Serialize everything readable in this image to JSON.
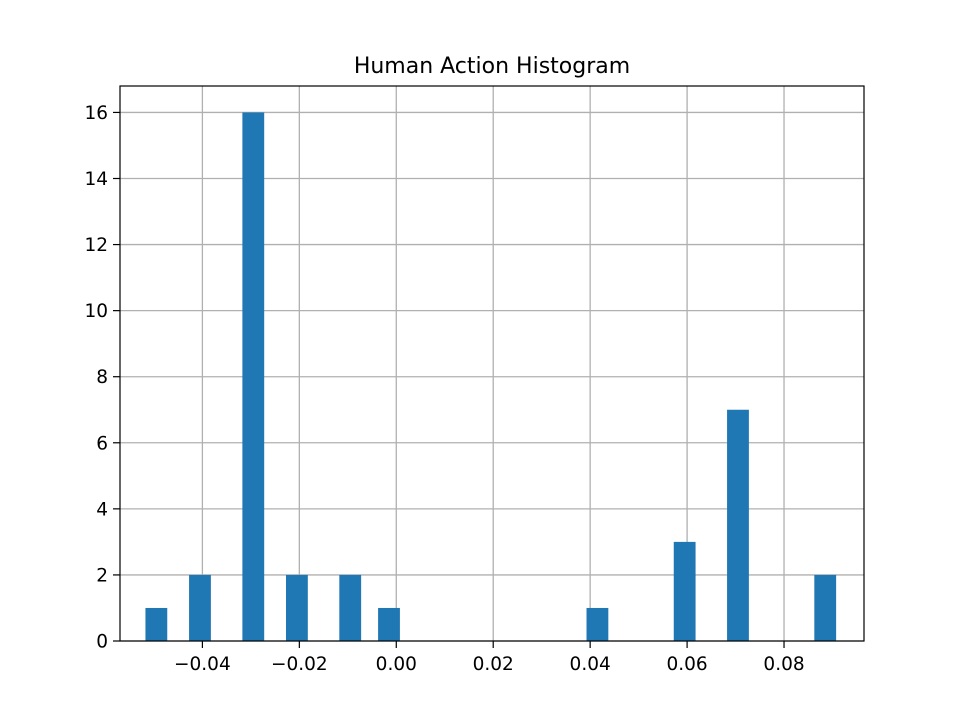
{
  "chart_data": {
    "type": "bar",
    "title": "Human Action Histogram",
    "xlabel": "",
    "ylabel": "",
    "xlim": [
      -0.057,
      0.0965
    ],
    "ylim": [
      0,
      16.8
    ],
    "grid": true,
    "bar_color": "#1f77b4",
    "grid_color": "#b0b0b0",
    "bin_width": 0.0045,
    "x": [
      -0.0495,
      -0.0405,
      -0.0295,
      -0.0205,
      -0.0095,
      -0.0015,
      0.0415,
      0.0595,
      0.0705,
      0.0885
    ],
    "values": [
      1,
      2,
      16,
      2,
      2,
      1,
      1,
      3,
      7,
      2
    ],
    "x_ticks": [
      -0.04,
      -0.02,
      0.0,
      0.02,
      0.04,
      0.06,
      0.08
    ],
    "x_tick_labels": [
      "−0.04",
      "−0.02",
      "0.00",
      "0.02",
      "0.04",
      "0.06",
      "0.08"
    ],
    "y_ticks": [
      0,
      2,
      4,
      6,
      8,
      10,
      12,
      14,
      16
    ],
    "y_tick_labels": [
      "0",
      "2",
      "4",
      "6",
      "8",
      "10",
      "12",
      "14",
      "16"
    ]
  }
}
